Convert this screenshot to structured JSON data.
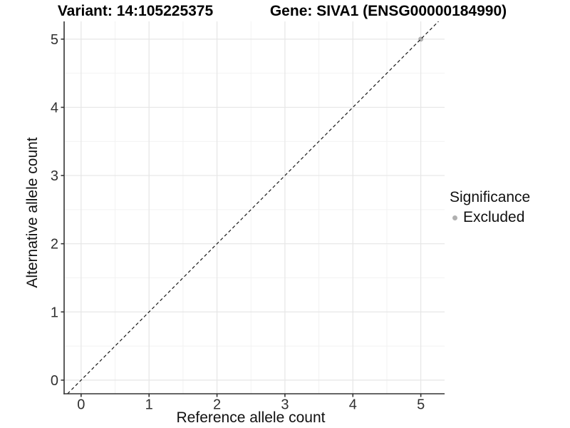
{
  "header": {
    "variant_title": "Variant: 14:105225375",
    "gene_title": "Gene: SIVA1 (ENSG00000184990)"
  },
  "chart_data": {
    "type": "scatter",
    "xlabel": "Reference allele count",
    "ylabel": "Alternative allele count",
    "xlim": [
      -0.25,
      5.35
    ],
    "ylim": [
      -0.2,
      5.26
    ],
    "x_ticks": [
      0,
      1,
      2,
      3,
      4,
      5
    ],
    "y_ticks": [
      0,
      1,
      2,
      3,
      4,
      5
    ],
    "minor_grid_step": 0.5,
    "grid": "major+minor",
    "series": [
      {
        "name": "Excluded",
        "color": "#b0b0b0",
        "points": [
          [
            5,
            5
          ]
        ]
      }
    ],
    "reference_line": {
      "slope": 1,
      "intercept": 0,
      "style": "dashed",
      "color": "#1a1a1a"
    },
    "legend": {
      "title": "Significance",
      "position": "right",
      "items": [
        {
          "label": "Excluded",
          "color": "#b0b0b0",
          "marker": "circle"
        }
      ]
    }
  },
  "style": {
    "background": "#ffffff",
    "grid_major_color": "#e6e6e6",
    "grid_minor_color": "#f2f2f2",
    "axis_line_color": "#333333",
    "tick_color": "#333333",
    "tick_label_color": "#303030",
    "point_color": "#b0b0b0"
  }
}
